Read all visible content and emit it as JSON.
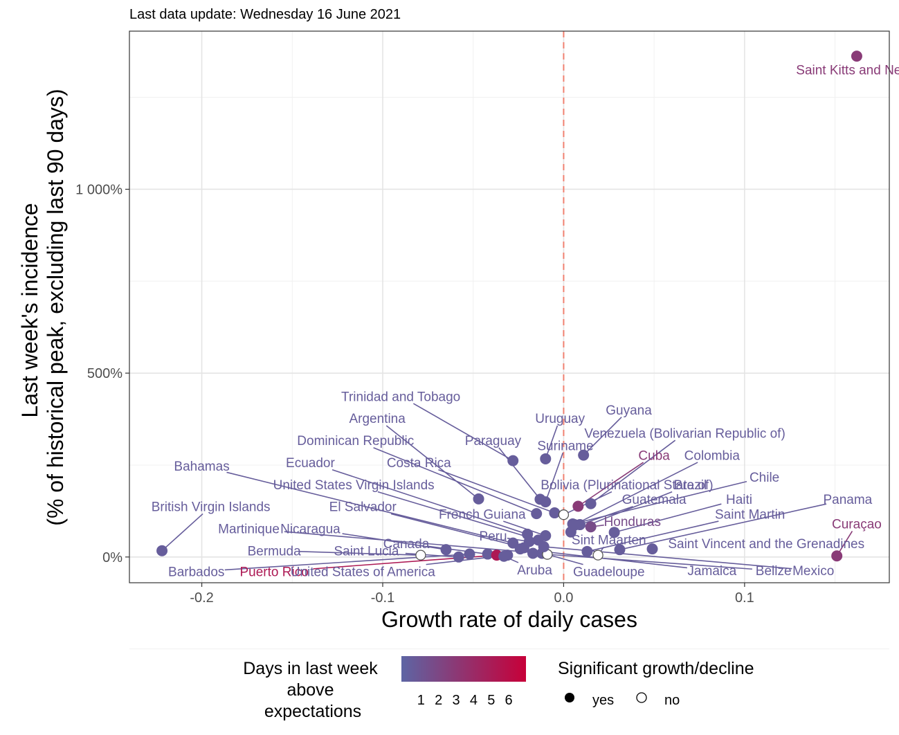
{
  "chart_data": {
    "type": "scatter",
    "title": "Last data update: Wednesday 16 June 2021",
    "xlabel": "Growth rate of daily cases",
    "ylabel": [
      "Last week's incidence",
      "(% of historical peak, excluding last 90 days)"
    ],
    "xlim": [
      -0.24,
      0.18
    ],
    "ylim": [
      -70,
      1430
    ],
    "x_ticks": [
      {
        "value": -0.2,
        "label": "-0.2"
      },
      {
        "value": -0.1,
        "label": "-0.1"
      },
      {
        "value": 0.0,
        "label": "0.0"
      },
      {
        "value": 0.1,
        "label": "0.1"
      }
    ],
    "y_ticks": [
      {
        "value": 0,
        "label": "0%"
      },
      {
        "value": 500,
        "label": "500%"
      },
      {
        "value": 1000,
        "label": "1 000%"
      }
    ],
    "reference_line": {
      "x": 0,
      "style": "dashed",
      "color": "#f08070"
    },
    "grid": true,
    "points": [
      {
        "label": "Saint Kitts and Nevis",
        "x": 0.162,
        "y": 1362,
        "days": 3,
        "significant": true,
        "lx": 0.162,
        "ly": 1325
      },
      {
        "label": "Curaçao",
        "x": 0.151,
        "y": 3,
        "days": 3,
        "significant": true,
        "lx": 0.162,
        "ly": 90
      },
      {
        "label": "British Virgin Islands",
        "x": -0.222,
        "y": 17,
        "days": 1,
        "significant": true,
        "lx": -0.195,
        "ly": 137
      },
      {
        "label": "Trinidad and Tobago",
        "x": -0.028,
        "y": 262,
        "days": 1,
        "significant": true,
        "lx": -0.09,
        "ly": 437
      },
      {
        "label": "Argentina",
        "x": -0.047,
        "y": 158,
        "days": 1,
        "significant": true,
        "lx": -0.103,
        "ly": 377
      },
      {
        "label": "Uruguay",
        "x": -0.01,
        "y": 267,
        "days": 1,
        "significant": true,
        "lx": -0.002,
        "ly": 377
      },
      {
        "label": "Guyana",
        "x": 0.011,
        "y": 277,
        "days": 1,
        "significant": true,
        "lx": 0.036,
        "ly": 400
      },
      {
        "label": "Paraguay",
        "x": -0.013,
        "y": 157,
        "days": 1,
        "significant": true,
        "lx": -0.039,
        "ly": 317
      },
      {
        "label": "Suriname",
        "x": -0.01,
        "y": 150,
        "days": 1,
        "significant": true,
        "lx": 0.001,
        "ly": 303
      },
      {
        "label": "Venezuela (Bolivarian Republic of)",
        "x": 0.015,
        "y": 145,
        "days": 1,
        "significant": true,
        "lx": 0.067,
        "ly": 337
      },
      {
        "label": "Cuba",
        "x": 0.008,
        "y": 138,
        "days": 3,
        "significant": true,
        "lx": 0.05,
        "ly": 277
      },
      {
        "label": "Colombia",
        "x": 0.006,
        "y": 88,
        "days": 1,
        "significant": true,
        "lx": 0.082,
        "ly": 277
      },
      {
        "label": "Dominican Republic",
        "x": -0.015,
        "y": 118,
        "days": 1,
        "significant": true,
        "lx": -0.115,
        "ly": 317
      },
      {
        "label": "Ecuador",
        "x": -0.02,
        "y": 62,
        "days": 1,
        "significant": true,
        "lx": -0.14,
        "ly": 257
      },
      {
        "label": "Costa Rica",
        "x": -0.005,
        "y": 120,
        "days": 1,
        "significant": true,
        "lx": -0.08,
        "ly": 257
      },
      {
        "label": "Bahamas",
        "x": -0.028,
        "y": 38,
        "days": 1,
        "significant": true,
        "lx": -0.2,
        "ly": 247
      },
      {
        "label": "Bolivia (Plurinational State of)",
        "x": 0.0,
        "y": 115,
        "days": 1,
        "significant": false,
        "lx": 0.035,
        "ly": 197
      },
      {
        "label": "Brazil",
        "x": 0.004,
        "y": 68,
        "days": 1,
        "significant": true,
        "lx": 0.07,
        "ly": 197
      },
      {
        "label": "Chile",
        "x": 0.005,
        "y": 90,
        "days": 1,
        "significant": true,
        "lx": 0.111,
        "ly": 217
      },
      {
        "label": "United States Virgin Islands",
        "x": -0.014,
        "y": 46,
        "days": 1,
        "significant": true,
        "lx": -0.116,
        "ly": 197
      },
      {
        "label": "Guatemala",
        "x": 0.009,
        "y": 88,
        "days": 1,
        "significant": true,
        "lx": 0.05,
        "ly": 157
      },
      {
        "label": "Haiti",
        "x": 0.028,
        "y": 67,
        "days": 1,
        "significant": true,
        "lx": 0.097,
        "ly": 157
      },
      {
        "label": "El Salvador",
        "x": -0.022,
        "y": 25,
        "days": 1,
        "significant": true,
        "lx": -0.111,
        "ly": 137
      },
      {
        "label": "French Guiana",
        "x": -0.01,
        "y": 58,
        "days": 1,
        "significant": true,
        "lx": -0.045,
        "ly": 117
      },
      {
        "label": "Honduras",
        "x": 0.015,
        "y": 82,
        "days": 2,
        "significant": true,
        "lx": 0.038,
        "ly": 97
      },
      {
        "label": "Saint Martin",
        "x": 0.013,
        "y": 15,
        "days": 1,
        "significant": true,
        "lx": 0.103,
        "ly": 117
      },
      {
        "label": "Panama",
        "x": 0.031,
        "y": 20,
        "days": 1,
        "significant": true,
        "lx": 0.157,
        "ly": 157
      },
      {
        "label": "Martinique",
        "x": -0.012,
        "y": 10,
        "days": 1,
        "significant": true,
        "lx": -0.174,
        "ly": 77
      },
      {
        "label": "Nicaragua",
        "x": -0.065,
        "y": 20,
        "days": 1,
        "significant": true,
        "lx": -0.14,
        "ly": 77
      },
      {
        "label": "Peru",
        "x": -0.019,
        "y": 42,
        "days": 1,
        "significant": true,
        "lx": -0.039,
        "ly": 57
      },
      {
        "label": "Sint Maarten",
        "x": 0.019,
        "y": 5,
        "days": 1,
        "significant": false,
        "lx": 0.025,
        "ly": 47
      },
      {
        "label": "Saint Vincent and the Grenadines",
        "x": 0.049,
        "y": 22,
        "days": 1,
        "significant": true,
        "lx": 0.112,
        "ly": 37
      },
      {
        "label": "Canada",
        "x": -0.042,
        "y": 8,
        "days": 1,
        "significant": true,
        "lx": -0.087,
        "ly": 37
      },
      {
        "label": "Bermuda",
        "x": -0.079,
        "y": 5,
        "days": 1,
        "significant": false,
        "lx": -0.16,
        "ly": 17
      },
      {
        "label": "Saint Lucia",
        "x": -0.058,
        "y": 0,
        "days": 1,
        "significant": true,
        "lx": -0.109,
        "ly": 17
      },
      {
        "label": "Barbados",
        "x": -0.052,
        "y": 8,
        "days": 1,
        "significant": true,
        "lx": -0.203,
        "ly": -40
      },
      {
        "label": "Puerto Rico",
        "x": -0.037,
        "y": 5,
        "days": 5,
        "significant": true,
        "lx": -0.16,
        "ly": -40
      },
      {
        "label": "United States of America",
        "x": -0.031,
        "y": 5,
        "days": 1,
        "significant": true,
        "lx": -0.111,
        "ly": -40
      },
      {
        "label": "Aruba",
        "x": -0.033,
        "y": 2,
        "days": 1,
        "significant": true,
        "lx": -0.016,
        "ly": -35
      },
      {
        "label": "Guadeloupe",
        "x": -0.009,
        "y": 7,
        "days": 1,
        "significant": false,
        "lx": 0.025,
        "ly": -40
      },
      {
        "label": "Jamaica",
        "x": -0.024,
        "y": 22,
        "days": 1,
        "significant": true,
        "lx": 0.082,
        "ly": -37
      },
      {
        "label": "Belize",
        "x": -0.017,
        "y": 10,
        "days": 1,
        "significant": true,
        "lx": 0.116,
        "ly": -37
      },
      {
        "label": "Mexico",
        "x": -0.011,
        "y": 28,
        "days": 1,
        "significant": true,
        "lx": 0.138,
        "ly": -37
      }
    ],
    "legends": {
      "color": {
        "title": [
          "Days in last week",
          "above",
          "expectations"
        ],
        "labels": [
          "1",
          "2",
          "3",
          "4",
          "5",
          "6"
        ],
        "low_color": "#5d65a4",
        "high_color": "#c70039"
      },
      "shape": {
        "title": "Significant growth/decline",
        "labels": [
          "yes",
          "no"
        ]
      }
    }
  }
}
